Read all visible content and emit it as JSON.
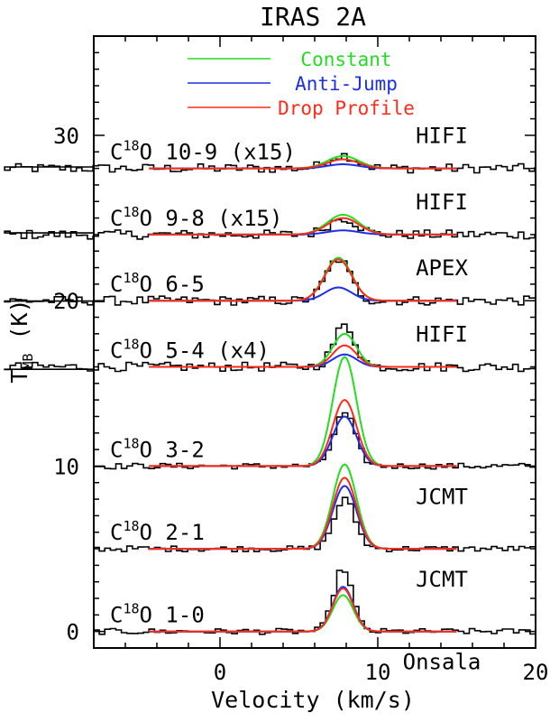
{
  "chart_data": {
    "type": "line",
    "title": "IRAS 2A",
    "xlabel": "Velocity (km/s)",
    "ylabel_main": "T",
    "ylabel_sub": "MB",
    "ylabel_unit": " (K)",
    "xlim": [
      -8,
      20
    ],
    "ylim": [
      -1,
      36
    ],
    "x_ticks": [
      0,
      10,
      20
    ],
    "y_ticks": [
      0,
      10,
      20,
      30
    ],
    "legend": {
      "placement": "top",
      "entries": [
        {
          "name": "Constant",
          "color": "#22dd22"
        },
        {
          "name": "Anti-Jump",
          "color": "#1a2fe6"
        },
        {
          "name": "Drop Profile",
          "color": "#ff2a1a"
        }
      ]
    },
    "transitions": [
      {
        "species": "C",
        "mass": "18",
        "rest": "O 10-9 (x15)",
        "telescope": "HIFI",
        "baseline": 28,
        "vrange": [
          -14,
          20
        ],
        "peak_obs": 0.8,
        "model": {
          "center": 7.8,
          "width": 1.0,
          "constant": 0.75,
          "anti_jump": 0.25,
          "drop": 0.55
        }
      },
      {
        "species": "C",
        "mass": "18",
        "rest": "O 9-8 (x15)",
        "telescope": "HIFI",
        "baseline": 24,
        "vrange": [
          -14,
          20
        ],
        "peak_obs": 1.0,
        "model": {
          "center": 7.8,
          "width": 1.0,
          "constant": 1.2,
          "anti_jump": 0.25,
          "drop": 1.0
        }
      },
      {
        "species": "C",
        "mass": "18",
        "rest": "O 6-5",
        "telescope": "APEX",
        "baseline": 20,
        "vrange": [
          -14,
          20
        ],
        "peak_obs": 2.5,
        "model": {
          "center": 7.5,
          "width": 0.85,
          "constant": 2.6,
          "anti_jump": 0.8,
          "drop": 2.5
        }
      },
      {
        "species": "C",
        "mass": "18",
        "rest": "O 5-4 (x4)",
        "telescope": "HIFI",
        "baseline": 16,
        "vrange": [
          -14,
          20
        ],
        "peak_obs": 2.5,
        "model": {
          "center": 7.9,
          "width": 0.75,
          "constant": 2.0,
          "anti_jump": 0.75,
          "drop": 1.3
        }
      },
      {
        "species": "C",
        "mass": "18",
        "rest": "O 3-2",
        "telescope": "JCMT",
        "baseline": 10,
        "vrange": [
          -8,
          20
        ],
        "peak_obs": 3.2,
        "model": {
          "center": 7.9,
          "width": 0.75,
          "constant": 6.6,
          "anti_jump": 3.0,
          "drop": 4.0
        }
      },
      {
        "species": "C",
        "mass": "18",
        "rest": "O 2-1",
        "telescope": "JCMT",
        "baseline": 5,
        "vrange": [
          -8,
          20
        ],
        "peak_obs": 3.0,
        "model": {
          "center": 7.9,
          "width": 0.75,
          "constant": 5.1,
          "anti_jump": 3.8,
          "drop": 4.3
        }
      },
      {
        "species": "C",
        "mass": "18",
        "rest": "O 1-0",
        "telescope": "Onsala",
        "baseline": 0,
        "vrange": [
          -8,
          20
        ],
        "peak_obs": 3.8,
        "model": {
          "center": 7.8,
          "width": 0.65,
          "constant": 2.2,
          "anti_jump": 2.7,
          "drop": 2.6
        }
      }
    ]
  }
}
